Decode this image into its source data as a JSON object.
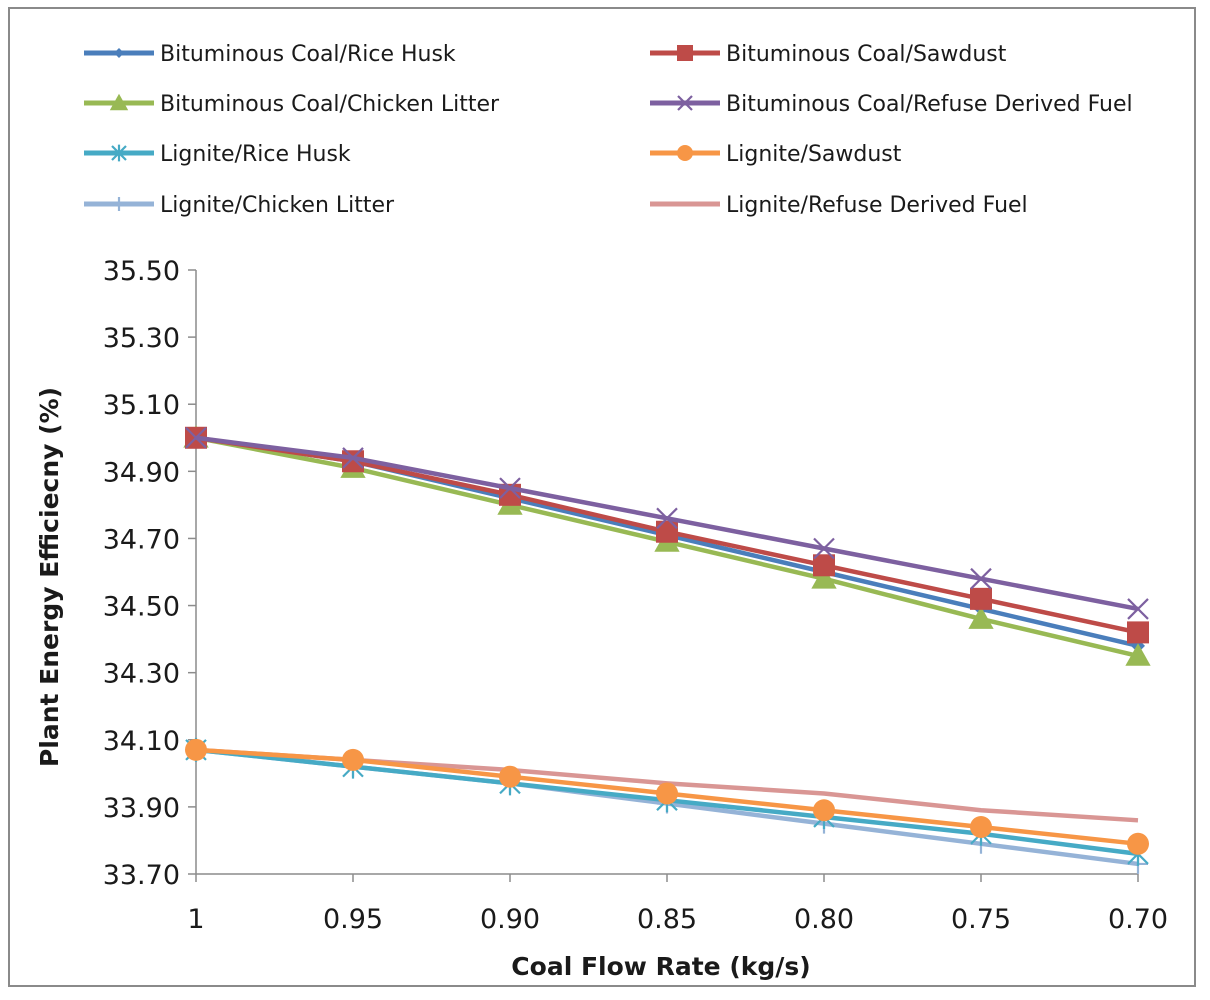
{
  "chart_data": {
    "type": "line",
    "title": "",
    "xlabel": "Coal Flow Rate (kg/s)",
    "ylabel": "Plant Energy Efficiecny (%)",
    "categories": [
      "1",
      "0.95",
      "0.90",
      "0.85",
      "0.80",
      "0.75",
      "0.70"
    ],
    "ylim": [
      33.7,
      35.5
    ],
    "yticks": [
      "33.70",
      "33.90",
      "34.10",
      "34.30",
      "34.50",
      "34.70",
      "34.90",
      "35.10",
      "35.30",
      "35.50"
    ],
    "grid": false,
    "legend_position": "top",
    "series": [
      {
        "name": "Bituminous Coal/Rice Husk",
        "color": "#4a7ebb",
        "marker": "diamond",
        "values": [
          35.0,
          34.93,
          34.82,
          34.71,
          34.6,
          34.49,
          34.38
        ]
      },
      {
        "name": "Bituminous Coal/Sawdust",
        "color": "#be4b48",
        "marker": "square",
        "values": [
          35.0,
          34.93,
          34.83,
          34.72,
          34.62,
          34.52,
          34.42
        ]
      },
      {
        "name": "Bituminous Coal/Chicken Litter",
        "color": "#98b954",
        "marker": "triangle",
        "values": [
          35.0,
          34.91,
          34.8,
          34.69,
          34.58,
          34.46,
          34.35
        ]
      },
      {
        "name": "Bituminous Coal/Refuse Derived Fuel",
        "color": "#7d60a0",
        "marker": "x",
        "values": [
          35.0,
          34.94,
          34.85,
          34.76,
          34.67,
          34.58,
          34.49
        ]
      },
      {
        "name": "Lignite/Rice Husk",
        "color": "#46aac5",
        "marker": "star",
        "values": [
          34.07,
          34.02,
          33.97,
          33.92,
          33.87,
          33.82,
          33.76
        ]
      },
      {
        "name": "Lignite/Sawdust",
        "color": "#f79646",
        "marker": "circle",
        "values": [
          34.07,
          34.04,
          33.99,
          33.94,
          33.89,
          33.84,
          33.79
        ]
      },
      {
        "name": "Lignite/Chicken Litter",
        "color": "#95b3d7",
        "marker": "plus",
        "values": [
          34.07,
          34.02,
          33.97,
          33.91,
          33.85,
          33.79,
          33.73
        ]
      },
      {
        "name": "Lignite/Refuse Derived Fuel",
        "color": "#d99694",
        "marker": "none",
        "values": [
          34.07,
          34.04,
          34.01,
          33.97,
          33.94,
          33.89,
          33.86
        ]
      }
    ]
  }
}
